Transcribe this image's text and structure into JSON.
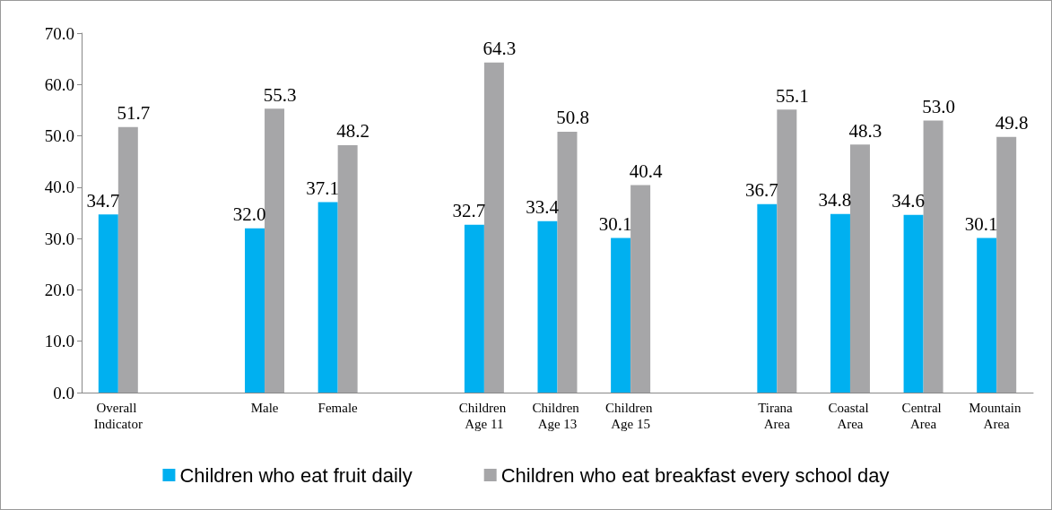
{
  "chart_data": {
    "type": "bar",
    "categories": [
      "Overall Indicator",
      null,
      "Male",
      "Female",
      null,
      "Children Age 11",
      "Children Age 13",
      "Children Age 15",
      null,
      "Tirana Area",
      "Coastal Area",
      "Central Area",
      "Mountain Area"
    ],
    "series": [
      {
        "name": "Children who eat fruit daily",
        "color": "#00b0f0",
        "values": [
          34.7,
          null,
          32.0,
          37.1,
          null,
          32.7,
          33.4,
          30.1,
          null,
          36.7,
          34.8,
          34.6,
          30.1
        ],
        "value_labels": [
          "34.7",
          null,
          "32.0",
          "37.1",
          null,
          "32.7",
          "33.4",
          "30.1",
          null,
          "36.7",
          "34.8",
          "34.6",
          "30.1"
        ]
      },
      {
        "name": "Children who eat breakfast every school day",
        "color": "#a6a6a8",
        "values": [
          51.7,
          null,
          55.3,
          48.2,
          null,
          64.3,
          50.8,
          40.4,
          null,
          55.1,
          48.3,
          53.0,
          49.8
        ],
        "value_labels": [
          "51.7",
          null,
          "55.3",
          "48.2",
          null,
          "64.3",
          "50.8",
          "40.4",
          null,
          "55.1",
          "48.3",
          "53.0",
          "49.8"
        ]
      }
    ],
    "ylim": [
      0,
      70
    ],
    "yticks": [
      {
        "value": 0,
        "label": "0.0"
      },
      {
        "value": 10,
        "label": "10.0"
      },
      {
        "value": 20,
        "label": "20.0"
      },
      {
        "value": 30,
        "label": "30.0"
      },
      {
        "value": 40,
        "label": "40.0"
      },
      {
        "value": 50,
        "label": "50.0"
      },
      {
        "value": 60,
        "label": "60.0"
      },
      {
        "value": 70,
        "label": "70.0"
      }
    ],
    "grid": false,
    "legend": "bottom"
  }
}
